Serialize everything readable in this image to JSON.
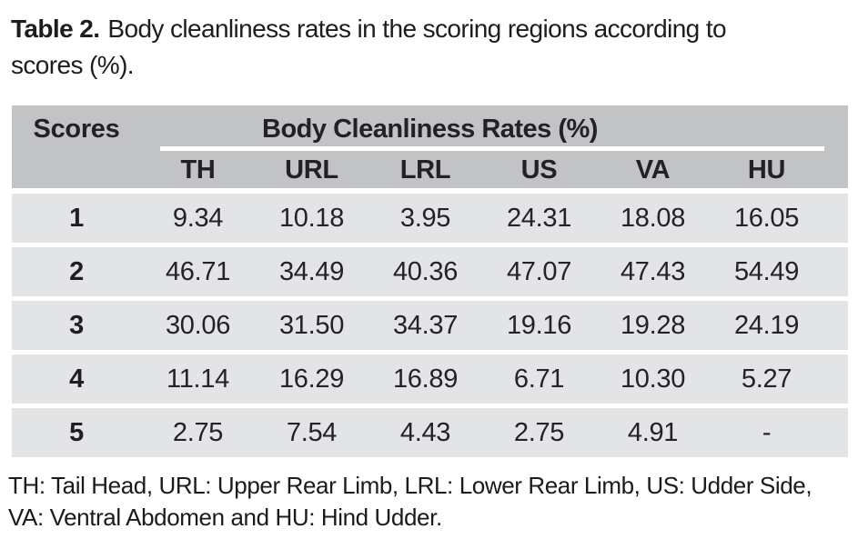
{
  "title": {
    "label": "Table 2.",
    "text_line1": "Body cleanliness rates in the scoring regions according to",
    "text_line2": "scores (%)."
  },
  "table": {
    "corner_header": "Scores",
    "group_header": "Body Cleanliness Rates (%)",
    "columns": [
      "TH",
      "URL",
      "LRL",
      "US",
      "VA",
      "HU"
    ],
    "rows": [
      {
        "score": "1",
        "values": [
          "9.34",
          "10.18",
          "3.95",
          "24.31",
          "18.08",
          "16.05"
        ]
      },
      {
        "score": "2",
        "values": [
          "46.71",
          "34.49",
          "40.36",
          "47.07",
          "47.43",
          "54.49"
        ]
      },
      {
        "score": "3",
        "values": [
          "30.06",
          "31.50",
          "34.37",
          "19.16",
          "19.28",
          "24.19"
        ]
      },
      {
        "score": "4",
        "values": [
          "11.14",
          "16.29",
          "16.89",
          "6.71",
          "10.30",
          "5.27"
        ]
      },
      {
        "score": "5",
        "values": [
          "2.75",
          "7.54",
          "4.43",
          "2.75",
          "4.91",
          "-"
        ]
      }
    ]
  },
  "footnote": {
    "line1": "TH: Tail Head, URL: Upper Rear Limb, LRL: Lower Rear Limb, US: Udder Side,",
    "line2": "VA: Ventral Abdomen and HU: Hind Udder."
  },
  "colors": {
    "header_bg": "#c2c3c5",
    "row_bg": "#e3e4e6",
    "text": "#222226",
    "page_bg": "#ffffff"
  }
}
